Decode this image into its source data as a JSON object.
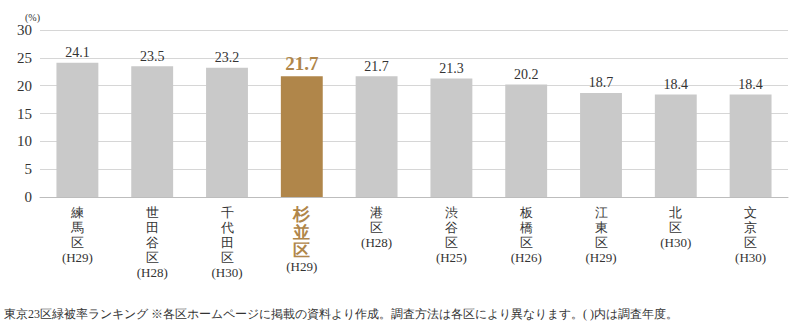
{
  "chart_data": {
    "type": "bar",
    "y_label": "(%)",
    "categories": [
      "練馬区(H29)",
      "世田谷区(H28)",
      "千代田区(H30)",
      "杉並区(H29)",
      "港区(H28)",
      "渋谷区(H25)",
      "板橋区(H26)",
      "江東区(H29)",
      "北区(H30)",
      "文京区(H30)"
    ],
    "values": [
      24.1,
      23.5,
      23.2,
      21.7,
      21.7,
      21.3,
      20.2,
      18.7,
      18.4,
      18.4
    ],
    "colors": [
      "#c9c9c9",
      "#c9c9c9",
      "#c9c9c9",
      "#b0864a",
      "#c9c9c9",
      "#c9c9c9",
      "#c9c9c9",
      "#c9c9c9",
      "#c9c9c9",
      "#c9c9c9"
    ],
    "ylim": [
      0,
      30
    ],
    "yticks": [
      0,
      5,
      10,
      15,
      20,
      25,
      30
    ],
    "grid": true,
    "data_labels": true,
    "annotations": [
      "東京23区緑被率ランキング ※各区ホームページに掲載の資料より作成。調査方法は各区により異なります。( )内は調査年度。"
    ]
  }
}
